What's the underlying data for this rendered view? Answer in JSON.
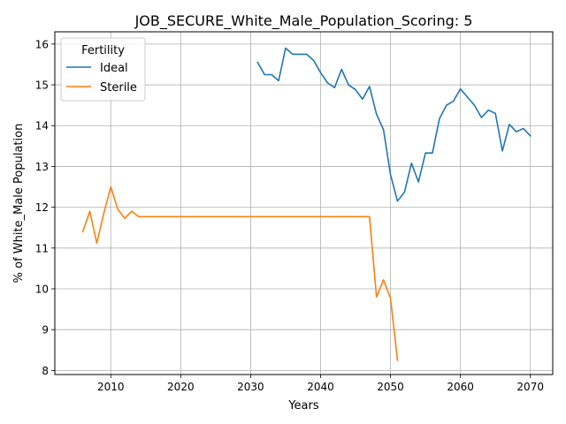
{
  "chart_data": {
    "type": "line",
    "title": "JOB_SECURE_White_Male_Population_Scoring: 5",
    "xlabel": "Years",
    "ylabel": "% of White_Male Population",
    "xlim": [
      2002.0,
      2073.2
    ],
    "ylim": [
      7.9,
      16.3
    ],
    "xticks": [
      2010,
      2020,
      2030,
      2040,
      2050,
      2060,
      2070
    ],
    "yticks": [
      8,
      9,
      10,
      11,
      12,
      13,
      14,
      15,
      16
    ],
    "grid": true,
    "legend": {
      "title": "Fertility",
      "placement": "upper left"
    },
    "series": [
      {
        "name": "Ideal",
        "color": "#1f77b4",
        "x": [
          2031,
          2032,
          2033,
          2034,
          2035,
          2036,
          2037,
          2038,
          2039,
          2040,
          2041,
          2042,
          2043,
          2044,
          2045,
          2046,
          2047,
          2048,
          2049,
          2050,
          2051,
          2052,
          2053,
          2054,
          2055,
          2056,
          2057,
          2058,
          2059,
          2060,
          2061,
          2062,
          2063,
          2064,
          2065,
          2066,
          2067,
          2068,
          2069,
          2070
        ],
        "y": [
          15.55,
          15.25,
          15.25,
          15.1,
          15.9,
          15.75,
          15.75,
          15.75,
          15.6,
          15.3,
          15.05,
          14.93,
          15.38,
          15.0,
          14.88,
          14.65,
          14.96,
          14.28,
          13.9,
          12.8,
          12.15,
          12.37,
          13.08,
          12.62,
          13.33,
          13.33,
          14.17,
          14.5,
          14.6,
          14.9,
          14.7,
          14.5,
          14.2,
          14.38,
          14.3,
          13.38,
          14.03,
          13.85,
          13.93,
          13.75
        ]
      },
      {
        "name": "Sterile",
        "color": "#ff7f0e",
        "x": [
          2006,
          2007,
          2008,
          2009,
          2010,
          2011,
          2012,
          2013,
          2014,
          2015,
          2016,
          2017,
          2018,
          2019,
          2020,
          2021,
          2022,
          2023,
          2024,
          2025,
          2026,
          2027,
          2028,
          2029,
          2030,
          2031,
          2032,
          2033,
          2034,
          2035,
          2036,
          2037,
          2038,
          2039,
          2040,
          2041,
          2042,
          2043,
          2044,
          2045,
          2046,
          2047,
          2048,
          2049,
          2050,
          2051
        ],
        "y": [
          11.4,
          11.9,
          11.12,
          11.85,
          12.5,
          11.95,
          11.73,
          11.9,
          11.77,
          11.77,
          11.77,
          11.77,
          11.77,
          11.77,
          11.77,
          11.77,
          11.77,
          11.77,
          11.77,
          11.77,
          11.77,
          11.77,
          11.77,
          11.77,
          11.77,
          11.77,
          11.77,
          11.77,
          11.77,
          11.77,
          11.77,
          11.77,
          11.77,
          11.77,
          11.77,
          11.77,
          11.77,
          11.77,
          11.77,
          11.77,
          11.77,
          11.77,
          9.8,
          10.22,
          9.77,
          8.25
        ]
      }
    ]
  }
}
